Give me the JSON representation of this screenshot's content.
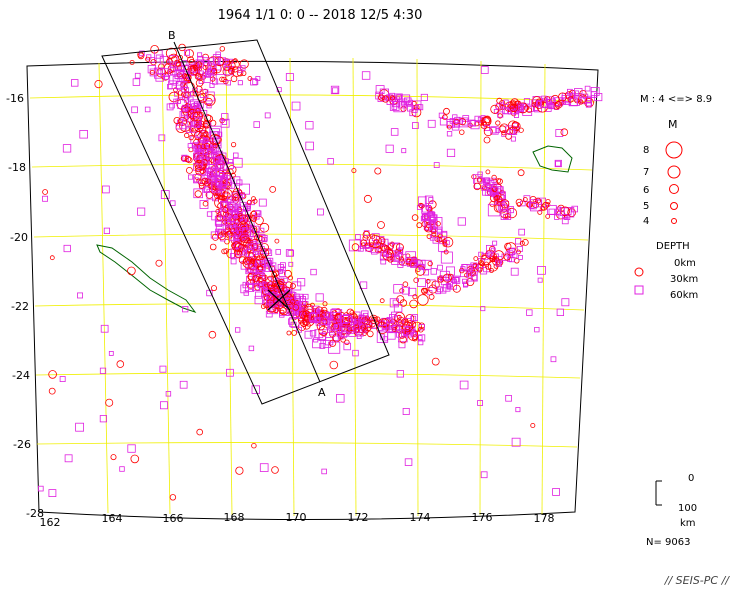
{
  "title": "1964 1/1  0: 0 -- 2018 12/5  4:30",
  "map": {
    "lon_ticks": [
      "162",
      "164",
      "166",
      "168",
      "170",
      "172",
      "174",
      "176",
      "178"
    ],
    "lat_ticks": [
      "-16",
      "-18",
      "-20",
      "-22",
      "-24",
      "-26",
      "-28"
    ],
    "section_label_a": "A",
    "section_label_b": "B"
  },
  "legend": {
    "magnitude_range": "M : 4 <=> 8.9",
    "magnitude_header": "M",
    "magnitudes": [
      "8",
      "7",
      "6",
      "5",
      "4"
    ],
    "depth_header": "DEPTH",
    "depths": [
      "0km",
      "30km",
      "60km"
    ],
    "scale_top": "0",
    "scale_bottom": "100",
    "scale_unit": "km",
    "count": "N= 9063"
  },
  "footer": "// SEIS-PC //",
  "colors": {
    "shallow": "#ff0000",
    "deep": "#e020e0",
    "grid": "#ffff00",
    "coast": "#006400"
  }
}
